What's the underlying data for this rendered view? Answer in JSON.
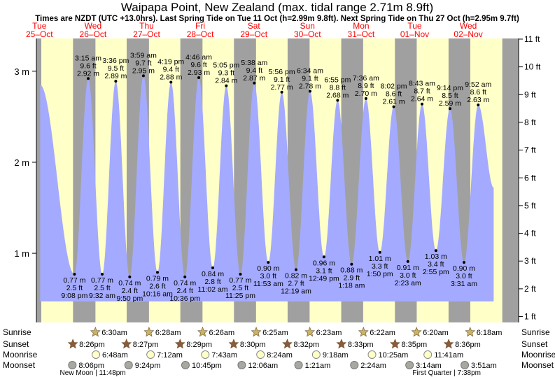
{
  "chart_data": {
    "type": "area",
    "title": "Waipapa Point, New Zealand (max. tidal range 2.71m 8.9ft)",
    "subtitle": "Times are NZDT (UTC +13.0hrs). Last Spring Tide on Tue 11 Oct (h=2.99m 9.8ft). Next Spring Tide on Thu 27 Oct (h=2.95m 9.7ft)",
    "days": [
      {
        "dow": "Tue",
        "date": "25–Oct"
      },
      {
        "dow": "Wed",
        "date": "26–Oct"
      },
      {
        "dow": "Thu",
        "date": "27–Oct"
      },
      {
        "dow": "Fri",
        "date": "28–Oct"
      },
      {
        "dow": "Sat",
        "date": "29–Oct"
      },
      {
        "dow": "Sun",
        "date": "30–Oct"
      },
      {
        "dow": "Mon",
        "date": "31–Oct"
      },
      {
        "dow": "Tue",
        "date": "01–Nov"
      },
      {
        "dow": "Wed",
        "date": "02–Nov"
      }
    ],
    "y_left_ticks": [
      {
        "v": 1,
        "label": "1 m"
      },
      {
        "v": 2,
        "label": "2 m"
      },
      {
        "v": 3,
        "label": "3 m"
      }
    ],
    "y_right_ticks": [
      {
        "v": 1,
        "label": "1 ft"
      },
      {
        "v": 2,
        "label": "2 ft"
      },
      {
        "v": 3,
        "label": "3 ft"
      },
      {
        "v": 4,
        "label": "4 ft"
      },
      {
        "v": 5,
        "label": "5 ft"
      },
      {
        "v": 6,
        "label": "6 ft"
      },
      {
        "v": 7,
        "label": "7 ft"
      },
      {
        "v": 8,
        "label": "8 ft"
      },
      {
        "v": 9,
        "label": "9 ft"
      },
      {
        "v": 10,
        "label": "10 ft"
      },
      {
        "v": 11,
        "label": "11 ft"
      }
    ],
    "ylim_m": [
      0.24,
      3.36
    ],
    "tides": [
      {
        "type": "high",
        "t": 0.24,
        "m": 2.85
      },
      {
        "type": "low",
        "t": 0.88,
        "m": 0.77,
        "time": "9:08 pm",
        "ft": "2.5 ft"
      },
      {
        "type": "high",
        "t": 1.136,
        "m": 2.92,
        "time": "3:15 am",
        "ft": "9.6 ft"
      },
      {
        "type": "low",
        "t": 1.397,
        "m": 0.77,
        "time": "9:32 am",
        "ft": "2.5 ft"
      },
      {
        "type": "high",
        "t": 1.65,
        "m": 2.89,
        "time": "3:36 pm",
        "ft": "9.5 ft"
      },
      {
        "type": "low",
        "t": 1.91,
        "m": 0.74,
        "time": "9:50 pm",
        "ft": "2.4 ft"
      },
      {
        "type": "high",
        "t": 2.166,
        "m": 2.95,
        "time": "3:59 am",
        "ft": "9.7 ft"
      },
      {
        "type": "low",
        "t": 2.428,
        "m": 0.79,
        "time": "10:16 am",
        "ft": "2.6 ft"
      },
      {
        "type": "high",
        "t": 2.68,
        "m": 2.88,
        "time": "4:19 pm",
        "ft": "9.4 ft"
      },
      {
        "type": "low",
        "t": 2.94,
        "m": 0.74,
        "time": "10:36 pm",
        "ft": "2.4 ft"
      },
      {
        "type": "high",
        "t": 3.199,
        "m": 2.93,
        "time": "4:46 am",
        "ft": "9.6 ft"
      },
      {
        "type": "low",
        "t": 3.46,
        "m": 0.84,
        "time": "11:02 am",
        "ft": "2.8 ft"
      },
      {
        "type": "high",
        "t": 3.712,
        "m": 2.84,
        "time": "5:05 pm",
        "ft": "9.3 ft"
      },
      {
        "type": "low",
        "t": 3.975,
        "m": 0.77,
        "time": "11:25 pm",
        "ft": "2.5 ft"
      },
      {
        "type": "high",
        "t": 4.234,
        "m": 2.87,
        "time": "5:38 am",
        "ft": "9.4 ft"
      },
      {
        "type": "low",
        "t": 4.495,
        "m": 0.9,
        "time": "11:53 am",
        "ft": "3.0 ft"
      },
      {
        "type": "high",
        "t": 4.747,
        "m": 2.77,
        "time": "5:56 pm",
        "ft": "9.1 ft"
      },
      {
        "type": "low",
        "t": 5.013,
        "m": 0.82,
        "time": "12:19 am",
        "ft": "2.7 ft"
      },
      {
        "type": "high",
        "t": 5.274,
        "m": 2.78,
        "time": "6:34 am",
        "ft": "9.1 ft"
      },
      {
        "type": "low",
        "t": 5.534,
        "m": 0.96,
        "time": "12:49 pm",
        "ft": "3.1 ft"
      },
      {
        "type": "high",
        "t": 5.788,
        "m": 2.68,
        "time": "6:55 pm",
        "ft": "8.8 ft"
      },
      {
        "type": "low",
        "t": 6.049,
        "m": 0.88,
        "time": "1:18 am",
        "ft": "2.9 ft"
      },
      {
        "type": "high",
        "t": 6.317,
        "m": 2.7,
        "time": "7:36 am",
        "ft": "8.9 ft"
      },
      {
        "type": "low",
        "t": 6.576,
        "m": 1.01,
        "time": "1:50 pm",
        "ft": "3.3 ft"
      },
      {
        "type": "high",
        "t": 6.835,
        "m": 2.61,
        "time": "8:02 pm",
        "ft": "8.6 ft"
      },
      {
        "type": "low",
        "t": 7.099,
        "m": 0.91,
        "time": "2:23 am",
        "ft": "3.0 ft"
      },
      {
        "type": "high",
        "t": 7.363,
        "m": 2.64,
        "time": "8:43 am",
        "ft": "8.7 ft"
      },
      {
        "type": "low",
        "t": 7.622,
        "m": 1.03,
        "time": "2:55 pm",
        "ft": "3.4 ft"
      },
      {
        "type": "high",
        "t": 7.885,
        "m": 2.59,
        "time": "9:14 pm",
        "ft": "8.5 ft"
      },
      {
        "type": "low",
        "t": 8.146,
        "m": 0.9,
        "time": "3:31 am",
        "ft": "3.0 ft"
      },
      {
        "type": "high",
        "t": 8.411,
        "m": 2.63,
        "time": "9:52 am",
        "ft": "8.6 ft"
      },
      {
        "type": "low",
        "t": 8.7,
        "m": 1.72
      }
    ],
    "nights": [
      {
        "start": 0.0,
        "end": 0.261
      },
      {
        "start": 0.853,
        "end": 1.271
      },
      {
        "start": 1.854,
        "end": 2.27
      },
      {
        "start": 2.855,
        "end": 3.268
      },
      {
        "start": 3.855,
        "end": 4.267
      },
      {
        "start": 4.856,
        "end": 5.266
      },
      {
        "start": 5.856,
        "end": 6.265
      },
      {
        "start": 6.857,
        "end": 7.264
      },
      {
        "start": 7.858,
        "end": 8.263
      },
      {
        "start": 8.86,
        "end": 9.0
      }
    ],
    "sun_moon": [
      {
        "sunrise": "6:30am",
        "sunrise_t": 1.27,
        "sunset": "8:26pm",
        "sunset_t": 0.85,
        "moonrise": "6:48am",
        "moonrise_t": 1.28,
        "moonset": "8:06pm",
        "moonset_t": 0.84
      },
      {
        "sunrise": "6:28am",
        "sunrise_t": 2.27,
        "sunset": "8:27pm",
        "sunset_t": 1.85,
        "moonrise": "7:12am",
        "moonrise_t": 2.3,
        "moonset": "9:24pm",
        "moonset_t": 1.89
      },
      {
        "sunrise": "6:26am",
        "sunrise_t": 3.27,
        "sunset": "8:29pm",
        "sunset_t": 2.85,
        "moonrise": "7:43am",
        "moonrise_t": 3.32,
        "moonset": "10:45pm",
        "moonset_t": 2.95
      },
      {
        "sunrise": "6:25am",
        "sunrise_t": 4.27,
        "sunset": "8:30pm",
        "sunset_t": 3.85,
        "moonrise": "8:24am",
        "moonrise_t": 4.35,
        "moonset": "12:06am",
        "moonset_t": 4.0
      },
      {
        "sunrise": "6:23am",
        "sunrise_t": 5.27,
        "sunset": "8:32pm",
        "sunset_t": 4.85,
        "moonrise": "9:18am",
        "moonrise_t": 5.39,
        "moonset": "1:21am",
        "moonset_t": 5.06
      },
      {
        "sunrise": "6:22am",
        "sunrise_t": 6.27,
        "sunset": "8:33pm",
        "sunset_t": 5.86,
        "moonrise": "10:25am",
        "moonrise_t": 6.43,
        "moonset": "2:24am",
        "moonset_t": 6.1
      },
      {
        "sunrise": "6:20am",
        "sunrise_t": 7.26,
        "sunset": "8:35pm",
        "sunset_t": 6.86,
        "moonrise": "11:41am",
        "moonrise_t": 7.47,
        "moonset": "3:14am",
        "moonset_t": 7.13
      },
      {
        "sunrise": "6:18am",
        "sunrise_t": 8.26,
        "sunset": "8:36pm",
        "sunset_t": 7.86,
        "moonset": "3:51am",
        "moonset_t": 8.16
      }
    ],
    "row_labels": [
      "Sunrise",
      "Sunset",
      "Moonrise",
      "Moonset"
    ],
    "moon_phases": [
      {
        "label": "New Moon | 11:48pm",
        "t": 0.7
      },
      {
        "label": "First Quarter | 7:38pm",
        "t": 7.3
      }
    ],
    "colors": {
      "day_bg": "#ffffc8",
      "night_bg": "#a0a0a0",
      "water": "#a4aaff",
      "day_label": "#ff0000",
      "right_axis_bg": "#a0a0a0",
      "star": "#c8b464",
      "star_dark": "#8c5a3c"
    }
  }
}
